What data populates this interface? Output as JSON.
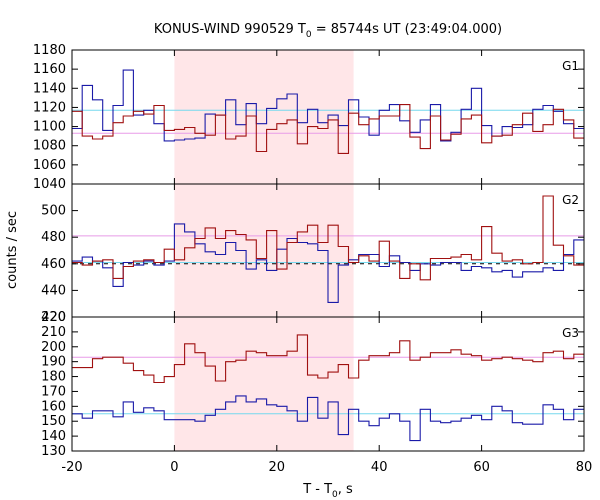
{
  "chart_data": {
    "type": "line",
    "title_main": "KONUS-WIND 990529 T",
    "title_sub": "0",
    "title_rest": " = 85744s UT (23:49:04.000)",
    "xlabel_main": "T - T",
    "xlabel_sub": "0",
    "xlabel_rest": ", s",
    "ylabel": "counts / sec",
    "xlim": [
      -20,
      80
    ],
    "x_ticks": [
      "-20",
      "0",
      "20",
      "40",
      "60",
      "80"
    ],
    "x_tick_values": [
      -20,
      0,
      20,
      40,
      60,
      80
    ],
    "shaded_interval": [
      0,
      35
    ],
    "bin_width": 2,
    "bin_start": -20,
    "grid": false,
    "panels": [
      {
        "label": "G1",
        "ylim": [
          1040,
          1180
        ],
        "y_ticks": [
          "1040",
          "1060",
          "1080",
          "1100",
          "1120",
          "1140",
          "1160",
          "1180"
        ],
        "y_tick_values": [
          1040,
          1060,
          1080,
          1100,
          1120,
          1140,
          1160,
          1180
        ],
        "series": [
          {
            "color": "#1a1aa8",
            "values": [
              1098,
              1143,
              1128,
              1096,
              1122,
              1159,
              1112,
              1117,
              1103,
              1085,
              1086,
              1087,
              1088,
              1113,
              1112,
              1128,
              1102,
              1124,
              1103,
              1119,
              1129,
              1134,
              1104,
              1118,
              1104,
              1112,
              1101,
              1128,
              1110,
              1091,
              1117,
              1123,
              1106,
              1094,
              1107,
              1123,
              1085,
              1094,
              1118,
              1140,
              1101,
              1090,
              1100,
              1099,
              1102,
              1118,
              1122,
              1116,
              1103,
              1098
            ]
          },
          {
            "color": "#a01010",
            "values": [
              1116,
              1090,
              1087,
              1090,
              1104,
              1111,
              1116,
              1113,
              1122,
              1096,
              1097,
              1099,
              1093,
              1091,
              1112,
              1087,
              1090,
              1111,
              1074,
              1097,
              1103,
              1107,
              1082,
              1100,
              1098,
              1107,
              1072,
              1114,
              1102,
              1108,
              1111,
              1111,
              1123,
              1089,
              1077,
              1111,
              1086,
              1092,
              1108,
              1112,
              1083,
              1090,
              1091,
              1102,
              1114,
              1095,
              1102,
              1118,
              1107,
              1088
            ]
          }
        ],
        "backgrounds": [
          {
            "color": "#77d8ee",
            "value": 1117
          },
          {
            "color": "#e89be8",
            "value": 1093
          }
        ]
      },
      {
        "label": "G2",
        "ylim": [
          420,
          520
        ],
        "y_ticks": [
          "420",
          "440",
          "460",
          "480",
          "500"
        ],
        "y_tick_values": [
          420,
          440,
          460,
          480,
          500
        ],
        "series": [
          {
            "color": "#1a1aa8",
            "values": [
              462,
              465,
              462,
              457,
              443,
              461,
              459,
              462,
              459,
              462,
              490,
              484,
              475,
              469,
              467,
              476,
              470,
              456,
              463,
              455,
              471,
              479,
              476,
              475,
              470,
              431,
              459,
              463,
              467,
              467,
              458,
              466,
              461,
              455,
              460,
              459,
              461,
              461,
              455,
              458,
              457,
              454,
              455,
              450,
              454,
              454,
              457,
              455,
              467,
              478
            ]
          },
          {
            "color": "#a01010",
            "values": [
              461,
              459,
              462,
              463,
              449,
              458,
              462,
              463,
              461,
              471,
              463,
              472,
              479,
              487,
              479,
              485,
              482,
              478,
              464,
              485,
              456,
              476,
              484,
              489,
              476,
              489,
              473,
              461,
              466,
              462,
              477,
              462,
              449,
              460,
              448,
              464,
              464,
              465,
              467,
              463,
              488,
              468,
              462,
              463,
              460,
              461,
              511,
              474,
              466,
              459
            ]
          }
        ],
        "backgrounds": [
          {
            "color": "#77d8ee",
            "value": 461
          },
          {
            "color": "#e89be8",
            "value": 481
          },
          {
            "color": "#000000",
            "value": 460,
            "dashed": true
          }
        ]
      },
      {
        "label": "G3",
        "ylim": [
          130,
          220
        ],
        "y_ticks": [
          "130",
          "140",
          "150",
          "160",
          "170",
          "180",
          "190",
          "200",
          "210",
          "220"
        ],
        "y_tick_values": [
          130,
          140,
          150,
          160,
          170,
          180,
          190,
          200,
          210,
          220
        ],
        "series": [
          {
            "color": "#1a1aa8",
            "values": [
              155,
              152,
              157,
              157,
              153,
              163,
              156,
              159,
              157,
              151,
              151,
              151,
              150,
              154,
              158,
              163,
              167,
              163,
              165,
              161,
              160,
              157,
              150,
              166,
              152,
              163,
              141,
              158,
              150,
              147,
              152,
              155,
              150,
              137,
              158,
              150,
              149,
              150,
              152,
              154,
              151,
              160,
              157,
              149,
              148,
              148,
              161,
              158,
              151,
              158
            ]
          },
          {
            "color": "#a01010",
            "values": [
              186,
              186,
              192,
              193,
              193,
              189,
              184,
              181,
              176,
              180,
              188,
              202,
              196,
              187,
              177,
              190,
              191,
              197,
              196,
              194,
              194,
              197,
              208,
              181,
              179,
              183,
              188,
              179,
              191,
              194,
              194,
              196,
              204,
              191,
              193,
              196,
              196,
              198,
              195,
              194,
              191,
              192,
              193,
              192,
              191,
              190,
              196,
              197,
              192,
              195
            ]
          }
        ],
        "backgrounds": [
          {
            "color": "#77d8ee",
            "value": 155
          },
          {
            "color": "#e89be8",
            "value": 193
          }
        ]
      }
    ]
  }
}
